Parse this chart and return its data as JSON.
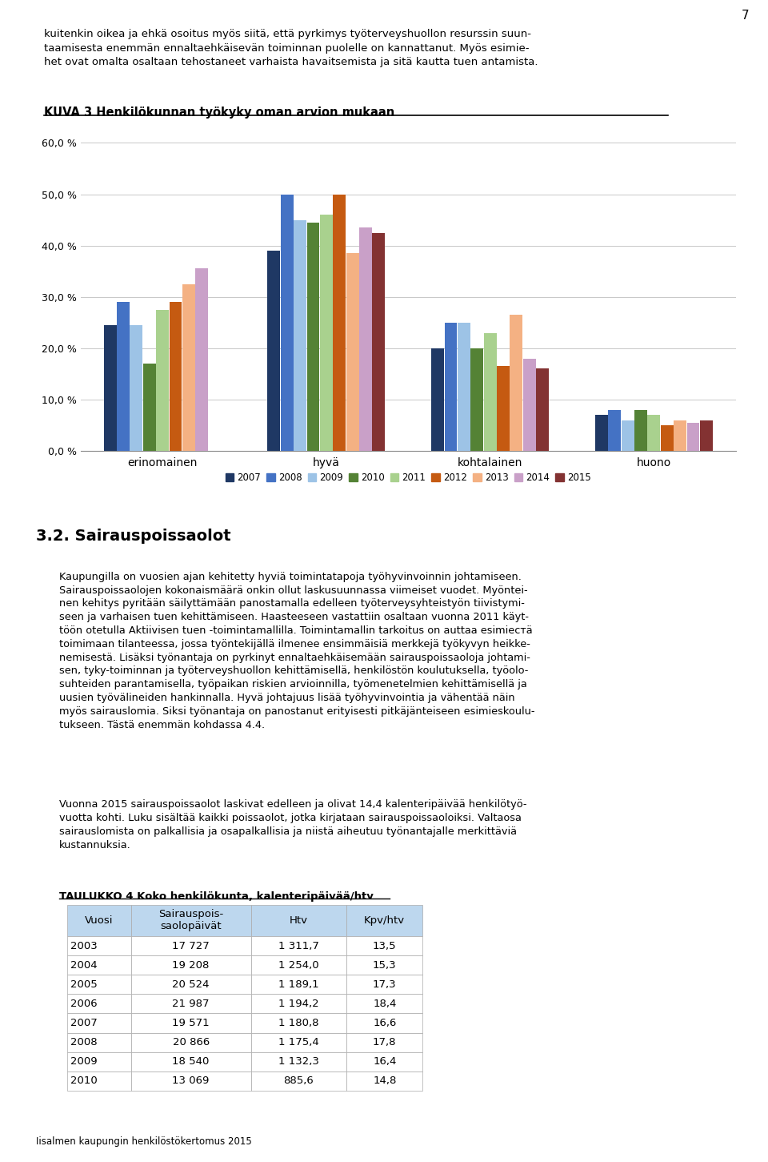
{
  "page_number": "7",
  "intro_text": "kuitenkin oikea ja ehkä osoitus myös siitä, että pyrkimys työterveyshuollon resurssin suun-\ntaamisesta enemmän ennaltaehkäisevän toiminnan puolelle on kannattanut. Myös esimie-\nhet ovat omalta osaltaan tehostaneet varhaista havaitsemista ja sitä kautta tuen antamista.",
  "chart_title": "KUVA 3 Henkilökunnan työkyky oman arvion mukaan",
  "categories": [
    "erinomainen",
    "hyvä",
    "kohtalainen",
    "huono"
  ],
  "years": [
    2007,
    2008,
    2009,
    2010,
    2011,
    2012,
    2013,
    2014,
    2015
  ],
  "colors": [
    "#1F3864",
    "#4472C4",
    "#9DC3E6",
    "#548235",
    "#A9D18E",
    "#C55A11",
    "#F4B183",
    "#C9A0C8",
    "#833232"
  ],
  "data": {
    "erinomainen": [
      24.5,
      29.0,
      24.5,
      17.0,
      27.5,
      29.0,
      32.5,
      35.5,
      0
    ],
    "hyvä": [
      39.0,
      50.0,
      45.0,
      44.5,
      46.0,
      50.0,
      38.5,
      43.5,
      42.5
    ],
    "kohtalainen": [
      20.0,
      25.0,
      25.0,
      20.0,
      23.0,
      16.5,
      26.5,
      18.0,
      16.0
    ],
    "huono": [
      7.0,
      8.0,
      6.0,
      8.0,
      7.0,
      5.0,
      6.0,
      5.5,
      6.0
    ]
  },
  "ylim": [
    0,
    60
  ],
  "ytick_vals": [
    0,
    10,
    20,
    30,
    40,
    50,
    60
  ],
  "ytick_labels": [
    "0,0 %",
    "10,0 %",
    "20,0 %",
    "30,0 %",
    "40,0 %",
    "50,0 %",
    "60,0 %"
  ],
  "section_title": "3.2. Sairauspoissaolot",
  "body_text1": "Kaupungilla on vuosien ajan kehitetty hyviä toimintatapoja työhyvinvoinnin johtamiseen.\nSairauspoissaolojen kokonaismäärä onkin ollut laskusuunnassa viimeiset vuodet. Myöntei-\nnen kehitys pyritään säilyttämään panostamalla edelleen työterveysyhteistyön tiivistymi-\nseen ja varhaisen tuen kehittämiseen. Haasteeseen vastattiin osaltaan vuonna 2011 käyt-\ntöön otetulla Aktiivisen tuen -toimintamallilla. Toimintamallin tarkoitus on auttaa esimiестä\ntoimimaan tilanteessa, jossa työntekijällä ilmenee ensimmäisiä merkkejä työkyvyn heikke-\nnemisestä. Lisäksi työnantaja on pyrkinyt ennaltaehkäisemään sairauspoissaoloja johtami-\nsen, tyky-toiminnan ja työterveyshuollon kehittämisellä, henkilöstön koulutuksella, työolo-\nsuhteiden parantamisella, työpaikan riskien arvioinnilla, työmenetelmien kehittämisellä ja\nuusien työvälineiden hankinnalla. Hyvä johtajuus lisää työhyvinvointia ja vähentää näin\nmyös sairauslomia. Siksi työnantaja on panostanut erityisesti pitkäjänteiseen esimieskoulu-\ntukseen. Tästä enemmän kohdassa 4.4.",
  "body_text2": "Vuonna 2015 sairauspoissaolot laskivat edelleen ja olivat 14,4 kalenteripäivää henkilötyö-\nvuotta kohti. Luku sisältää kaikki poissaolot, jotka kirjataan sairauspoissaoloiksi. Valtaosa\nsairauslomista on palkallisia ja osapalkallisia ja niistä aiheutuu työnantajalle merkittäviä\nkustannuksia.",
  "table_title": "TAULUKKO 4 Koko henkilökunta, kalenteripäivää/htv",
  "table_headers": [
    "Vuosi",
    "Sairauspois-\nsaolopäivät",
    "Htv",
    "Kpv/htv"
  ],
  "table_rows": [
    [
      "2003",
      "17 727",
      "1 311,7",
      "13,5"
    ],
    [
      "2004",
      "19 208",
      "1 254,0",
      "15,3"
    ],
    [
      "2005",
      "20 524",
      "1 189,1",
      "17,3"
    ],
    [
      "2006",
      "21 987",
      "1 194,2",
      "18,4"
    ],
    [
      "2007",
      "19 571",
      "1 180,8",
      "16,6"
    ],
    [
      "2008",
      "20 866",
      "1 175,4",
      "17,8"
    ],
    [
      "2009",
      "18 540",
      "1 132,3",
      "16,4"
    ],
    [
      "2010",
      "13 069",
      "885,6",
      "14,8"
    ]
  ],
  "footer_text": "Iisalmen kaupungin henkilöstökertomus 2015",
  "bg": "#FFFFFF"
}
